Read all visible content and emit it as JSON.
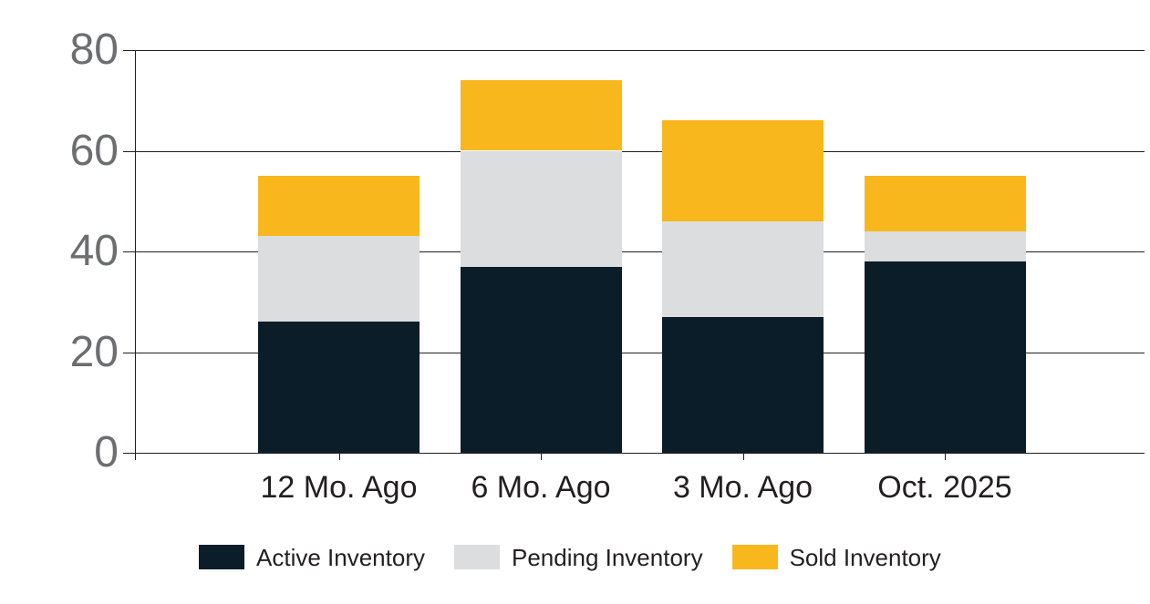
{
  "chart_data": {
    "type": "bar",
    "stacked": true,
    "title": "",
    "xlabel": "",
    "ylabel": "",
    "categories": [
      "12 Mo. Ago",
      "6 Mo. Ago",
      "3 Mo. Ago",
      "Oct. 2025"
    ],
    "series": [
      {
        "name": "Active Inventory",
        "color": "#0b1d29",
        "values": [
          26,
          37,
          27,
          38
        ]
      },
      {
        "name": "Pending Inventory",
        "color": "#dcddde",
        "values": [
          17,
          23,
          19,
          6
        ]
      },
      {
        "name": "Sold Inventory",
        "color": "#f8b71c",
        "values": [
          12,
          14,
          20,
          11
        ]
      }
    ],
    "stack_totals": [
      55,
      74,
      66,
      55
    ],
    "cumulative_tops": {
      "active": [
        26,
        37,
        27,
        38
      ],
      "pending": [
        43,
        60,
        46,
        44
      ],
      "sold": [
        55,
        74,
        66,
        55
      ]
    },
    "ylim": [
      0,
      80
    ],
    "yticks": [
      "0",
      "20",
      "40",
      "60",
      "80"
    ],
    "grid": true,
    "legend_position": "bottom"
  },
  "style": {
    "background": "#ffffff",
    "grid_color": "#231f20",
    "y_label_color": "#6d6e71",
    "x_label_color": "#231f20",
    "legend_text_color": "#231f20"
  }
}
